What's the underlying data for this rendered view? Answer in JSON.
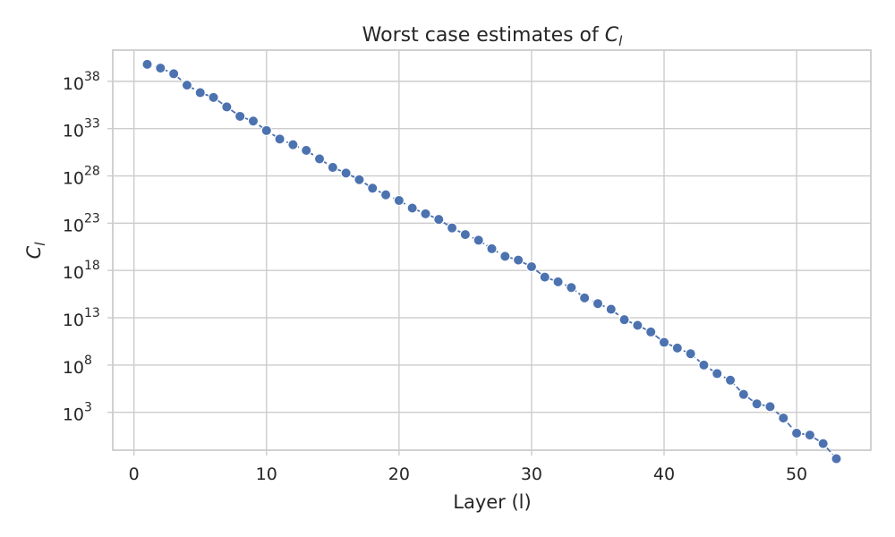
{
  "chart_data": {
    "type": "line",
    "title_base": "Worst case estimates of ",
    "title_var": "C",
    "title_sub": "l",
    "xlabel": "Layer (l)",
    "ylabel_var": "C",
    "ylabel_sub": "l",
    "xlim": [
      -1.6,
      55.6
    ],
    "ylim_log10": [
      -1.0,
      41.3
    ],
    "y_scale": "log",
    "grid": true,
    "legend": "none",
    "xticks": [
      0,
      10,
      20,
      30,
      40,
      50
    ],
    "yticks": [
      {
        "base": "10",
        "exp": "38",
        "log10": 38
      },
      {
        "base": "10",
        "exp": "33",
        "log10": 33
      },
      {
        "base": "10",
        "exp": "28",
        "log10": 28
      },
      {
        "base": "10",
        "exp": "23",
        "log10": 23
      },
      {
        "base": "10",
        "exp": "18",
        "log10": 18
      },
      {
        "base": "10",
        "exp": "13",
        "log10": 13
      },
      {
        "base": "10",
        "exp": "8",
        "log10": 8
      },
      {
        "base": "10",
        "exp": "3",
        "log10": 3
      }
    ],
    "color": "#4c72b0",
    "series": [
      {
        "x": [
          1,
          2,
          3,
          4,
          5,
          6,
          7,
          8,
          9,
          10,
          11,
          12,
          13,
          14,
          15,
          16,
          17,
          18,
          19,
          20,
          21,
          22,
          23,
          24,
          25,
          26,
          27,
          28,
          29,
          30,
          31,
          32,
          33,
          34,
          35,
          36,
          37,
          38,
          39,
          40,
          41,
          42,
          43,
          44,
          45,
          46,
          47,
          48,
          49,
          50,
          51,
          52,
          53
        ],
        "y_log10": [
          39.8,
          39.4,
          38.8,
          37.6,
          36.8,
          36.3,
          35.3,
          34.3,
          33.8,
          32.8,
          31.9,
          31.3,
          30.7,
          29.8,
          28.9,
          28.3,
          27.6,
          26.7,
          26.0,
          25.4,
          24.6,
          24.0,
          23.4,
          22.5,
          21.8,
          21.2,
          20.3,
          19.5,
          19.1,
          18.4,
          17.3,
          16.8,
          16.2,
          15.1,
          14.5,
          13.9,
          12.8,
          12.2,
          11.5,
          10.4,
          9.8,
          9.2,
          8.0,
          7.1,
          6.4,
          4.9,
          3.9,
          3.6,
          2.4,
          0.8,
          0.6,
          -0.3,
          -1.9
        ]
      }
    ]
  }
}
